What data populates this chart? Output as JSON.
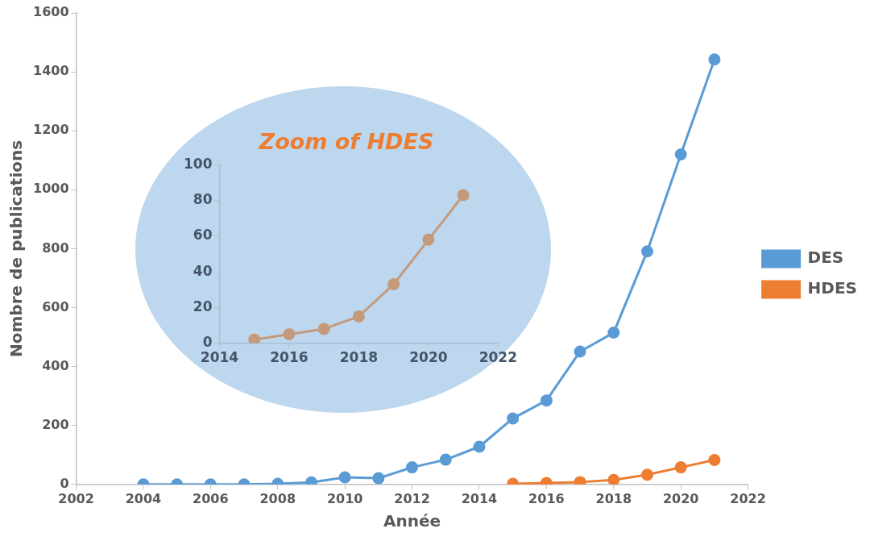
{
  "chart_data": [
    {
      "type": "line",
      "xlabel": "Année",
      "ylabel": "Nombre de publications",
      "xlim": [
        2002,
        2022
      ],
      "xticks": [
        2002,
        2004,
        2006,
        2008,
        2010,
        2012,
        2014,
        2016,
        2018,
        2020,
        2022
      ],
      "ylim": [
        0,
        1600
      ],
      "yticks": [
        0,
        200,
        400,
        600,
        800,
        1000,
        1200,
        1400,
        1600
      ],
      "series": [
        {
          "name": "DES",
          "color": "#5b9bd5",
          "x": [
            2004,
            2005,
            2006,
            2007,
            2008,
            2009,
            2010,
            2011,
            2012,
            2013,
            2014,
            2015,
            2016,
            2017,
            2018,
            2019,
            2020,
            2021
          ],
          "values": [
            0,
            0,
            0,
            0,
            2,
            7,
            24,
            21,
            58,
            84,
            128,
            224,
            285,
            451,
            515,
            791,
            1120,
            1442
          ]
        },
        {
          "name": "HDES",
          "color": "#ed7d31",
          "x": [
            2015,
            2016,
            2017,
            2018,
            2019,
            2020,
            2021
          ],
          "values": [
            2,
            5,
            8,
            15,
            33,
            58,
            83
          ]
        }
      ],
      "marker": "circle",
      "line_style": "solid",
      "grid": false,
      "legend": "right"
    },
    {
      "type": "line",
      "title": "Zoom of HDES",
      "xlim": [
        2014,
        2022
      ],
      "xticks": [
        2014,
        2016,
        2018,
        2020,
        2022
      ],
      "ylim": [
        0,
        100
      ],
      "yticks": [
        0,
        20,
        40,
        60,
        80,
        100
      ],
      "series": [
        {
          "color": "#c49a7c",
          "x": [
            2015,
            2016,
            2017,
            2018,
            2019,
            2020,
            2021
          ],
          "values": [
            2,
            5,
            8,
            15,
            33,
            58,
            83
          ]
        }
      ],
      "marker": "circle",
      "line_style": "solid",
      "grid": false,
      "legend": false
    }
  ]
}
